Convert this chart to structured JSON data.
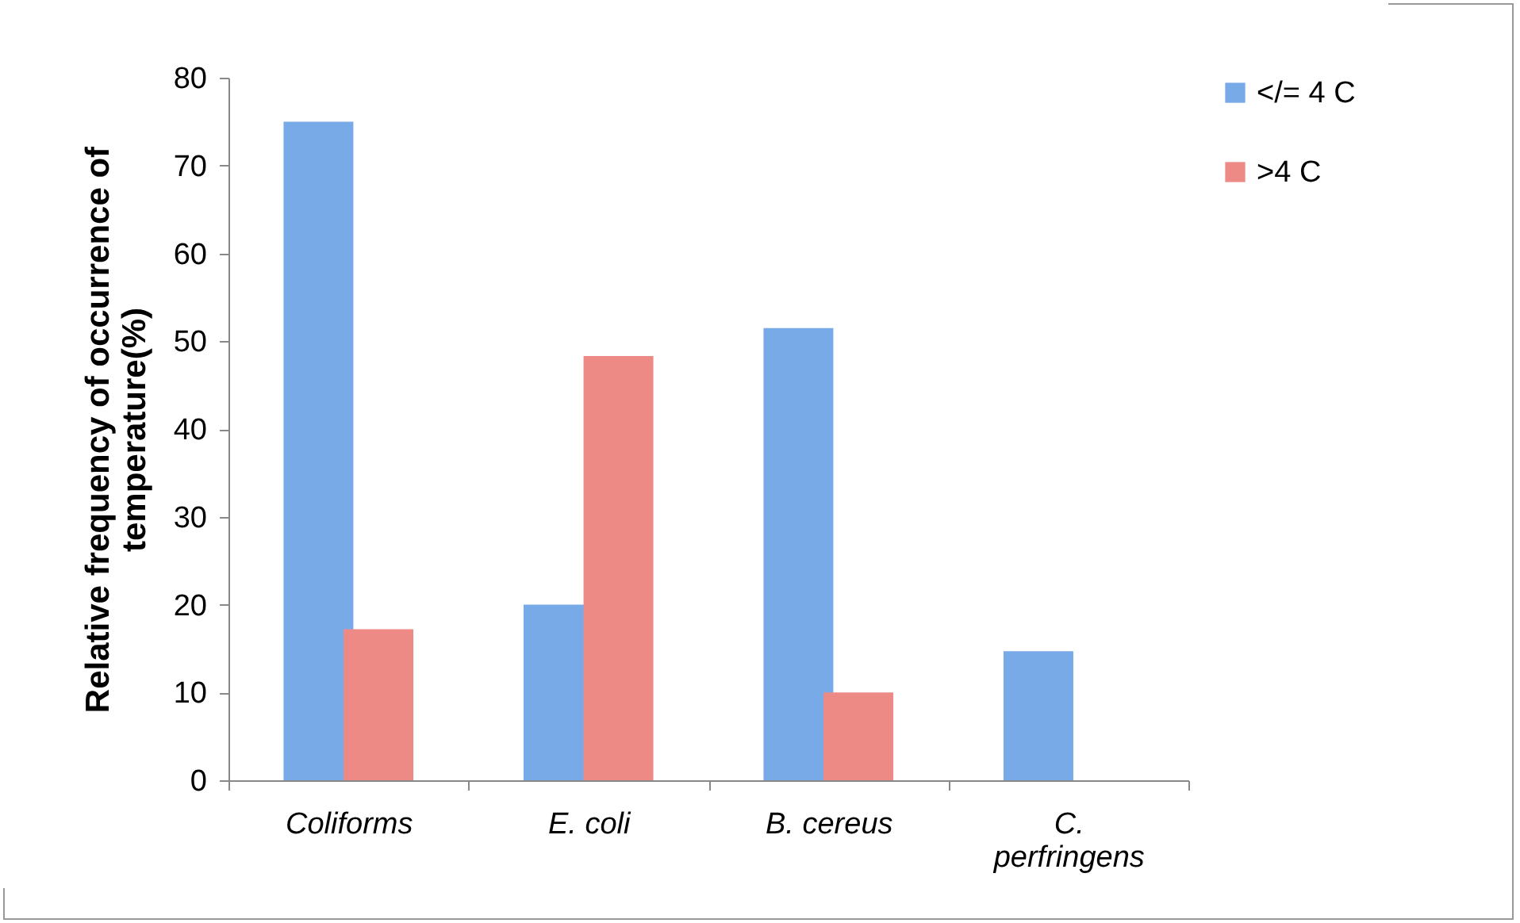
{
  "chart_data": {
    "type": "bar",
    "ylabel": "Relative frequency of occurrence of temperature(%)",
    "categories": [
      "Coliforms",
      "E. coli",
      "B. cereus",
      "C. perfringens"
    ],
    "series": [
      {
        "name": "</= 4 C",
        "color": "#79aae8",
        "values": [
          75,
          20,
          51.5,
          14.7
        ]
      },
      {
        "name": ">4 C",
        "color": "#ee8a86",
        "values": [
          17.2,
          48.3,
          10,
          0
        ]
      }
    ],
    "ylim": [
      0,
      80
    ],
    "yticks": [
      0,
      10,
      20,
      30,
      40,
      50,
      60,
      70,
      80
    ],
    "grid": false,
    "legend": "right"
  }
}
